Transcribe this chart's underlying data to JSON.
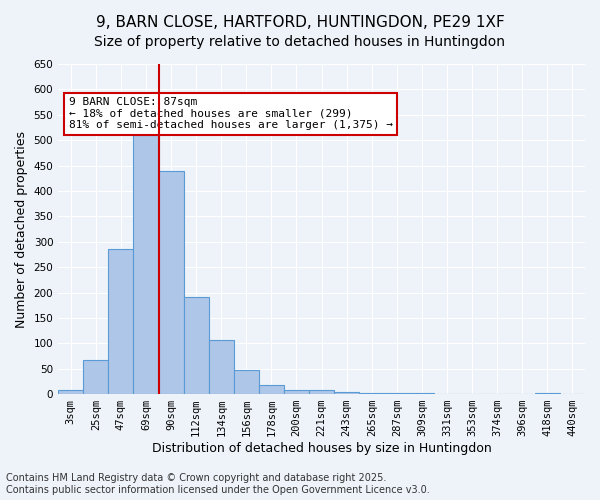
{
  "title_line1": "9, BARN CLOSE, HARTFORD, HUNTINGDON, PE29 1XF",
  "title_line2": "Size of property relative to detached houses in Huntingdon",
  "xlabel": "Distribution of detached houses by size in Huntingdon",
  "ylabel": "Number of detached properties",
  "categories": [
    "3sqm",
    "25sqm",
    "47sqm",
    "69sqm",
    "90sqm",
    "112sqm",
    "134sqm",
    "156sqm",
    "178sqm",
    "200sqm",
    "221sqm",
    "243sqm",
    "265sqm",
    "287sqm",
    "309sqm",
    "331sqm",
    "353sqm",
    "374sqm",
    "396sqm",
    "418sqm",
    "440sqm"
  ],
  "values": [
    8,
    67,
    285,
    510,
    440,
    192,
    106,
    47,
    17,
    8,
    8,
    5,
    3,
    3,
    3,
    1,
    1,
    0,
    1,
    3,
    0
  ],
  "bar_color": "#aec6e8",
  "bar_edge_color": "#5b9bd5",
  "vline_pos": 3.5,
  "vline_color": "#cc0000",
  "annotation_text": "9 BARN CLOSE: 87sqm\n← 18% of detached houses are smaller (299)\n81% of semi-detached houses are larger (1,375) →",
  "annotation_box_color": "#ffffff",
  "annotation_box_edge_color": "#cc0000",
  "ylim": [
    0,
    650
  ],
  "yticks": [
    0,
    50,
    100,
    150,
    200,
    250,
    300,
    350,
    400,
    450,
    500,
    550,
    600,
    650
  ],
  "background_color": "#eef3fa",
  "grid_color": "#ffffff",
  "footer_line1": "Contains HM Land Registry data © Crown copyright and database right 2025.",
  "footer_line2": "Contains public sector information licensed under the Open Government Licence v3.0.",
  "title_fontsize": 11,
  "subtitle_fontsize": 10,
  "axis_label_fontsize": 9,
  "tick_fontsize": 7.5,
  "annotation_fontsize": 8,
  "footer_fontsize": 7
}
